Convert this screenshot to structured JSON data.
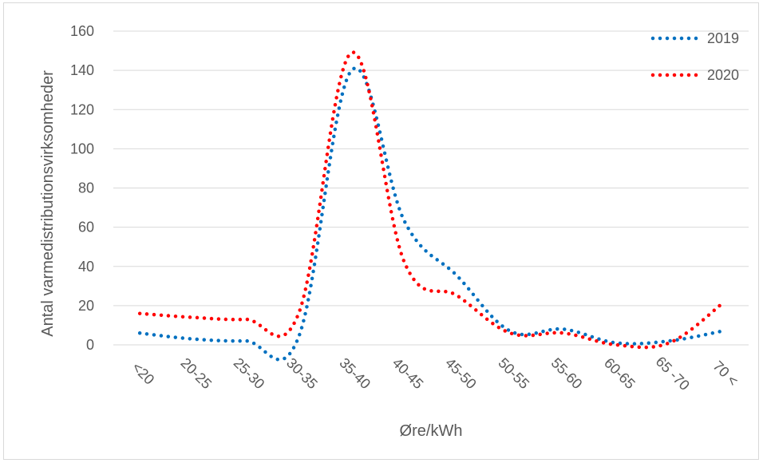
{
  "chart_data": {
    "type": "line",
    "title": "",
    "xlabel": "Øre/kWh",
    "ylabel": "Antal varmedistributionsvirksomheder",
    "categories": [
      "<20",
      "20-25",
      "25-30",
      "30-35",
      "35-40",
      "40-45",
      "45-50",
      "50-55",
      "55-60",
      "60-65",
      "65 -70",
      "70 <"
    ],
    "ylim": [
      0,
      160
    ],
    "yticks": [
      0,
      20,
      40,
      60,
      80,
      100,
      120,
      140,
      160
    ],
    "grid": true,
    "legend_position": "top-right",
    "line_style": "dotted",
    "series": [
      {
        "name": "2019",
        "color": "#0070C0",
        "values": [
          6,
          3,
          2,
          4,
          140,
          63,
          35,
          7,
          8,
          1,
          2,
          7
        ]
      },
      {
        "name": "2020",
        "color": "#FF0000",
        "values": [
          16,
          14,
          13,
          16,
          149,
          42,
          25,
          6,
          6,
          0,
          1,
          21
        ]
      }
    ]
  }
}
